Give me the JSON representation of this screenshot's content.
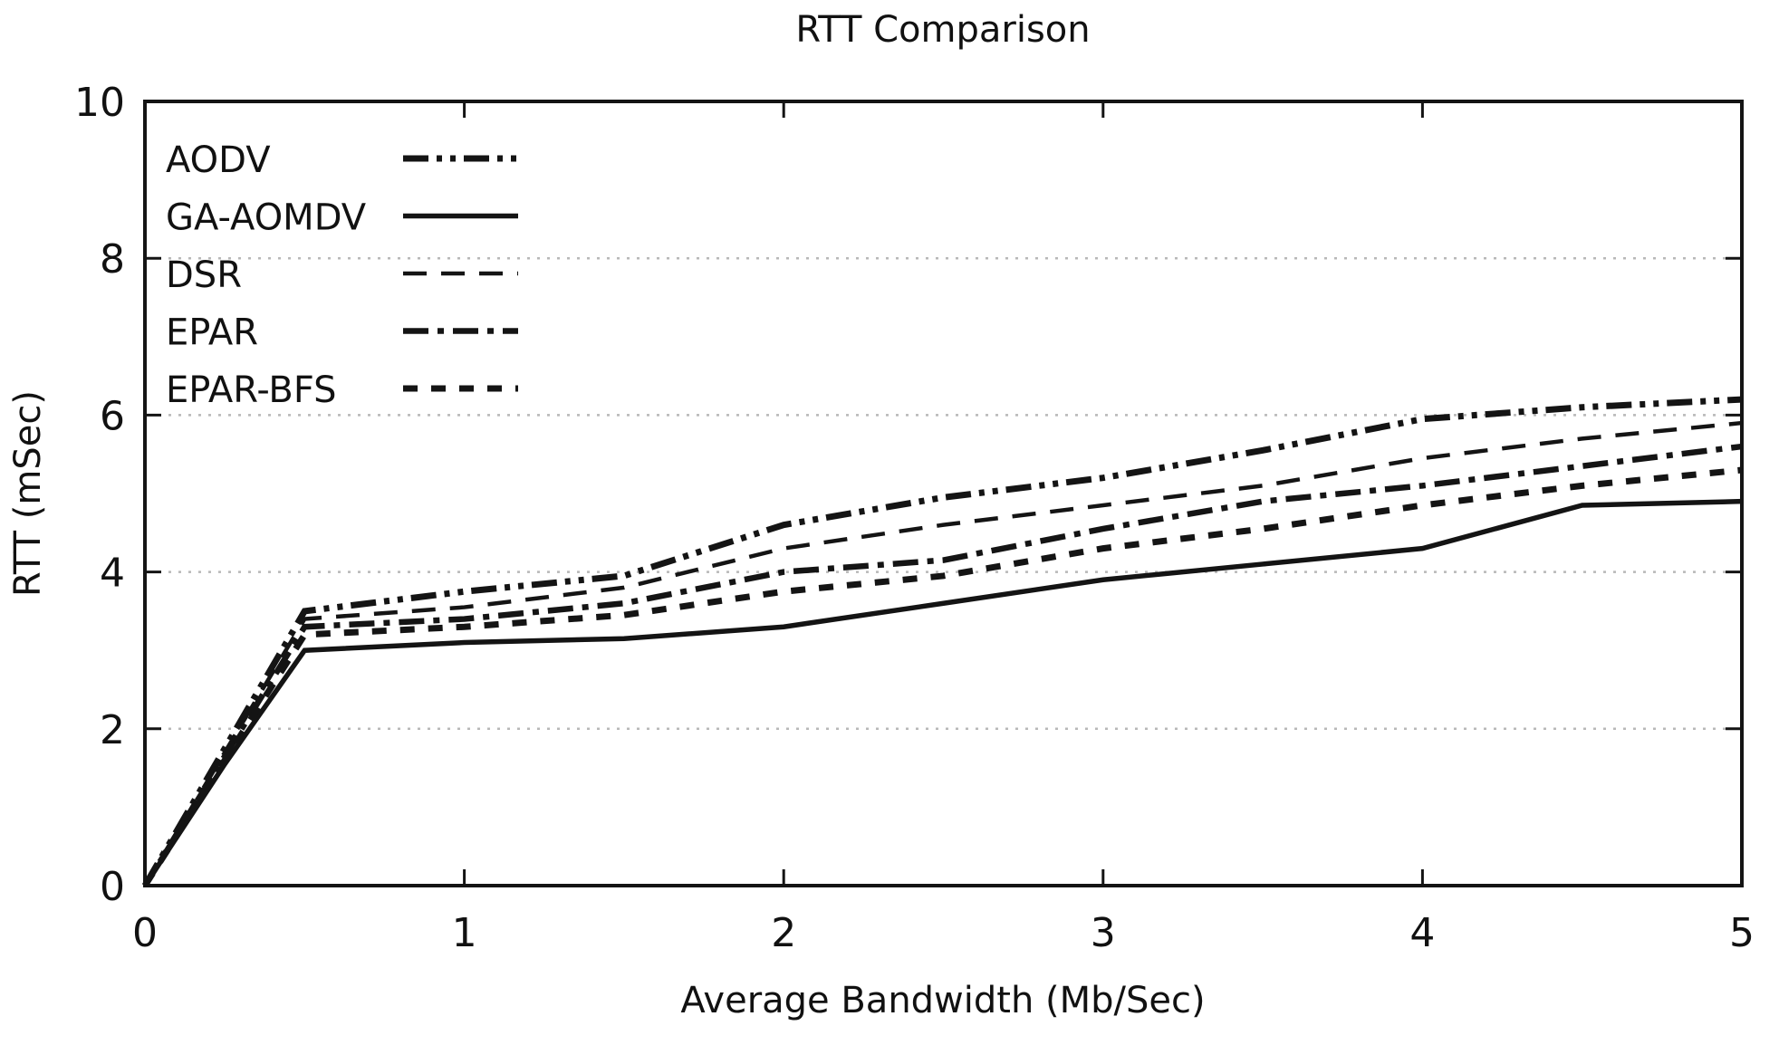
{
  "title": "RTT Comparison",
  "chart_data": {
    "type": "line",
    "title": "RTT Comparison",
    "xlabel": "Average Bandwidth (Mb/Sec)",
    "ylabel": "RTT (mSec)",
    "xlim": [
      0,
      5
    ],
    "ylim": [
      0,
      10
    ],
    "xticks": [
      0,
      1,
      2,
      3,
      4,
      5
    ],
    "yticks": [
      0,
      2,
      4,
      6,
      8,
      10
    ],
    "grid": "horizontal-dotted",
    "gridline_values": [
      2,
      4,
      6,
      8
    ],
    "grid_color": "#b8b8b8",
    "line_color": "#141414",
    "legend_position": "top-left-inside",
    "x": [
      0,
      0.25,
      0.5,
      1,
      1.5,
      2,
      2.5,
      3,
      3.5,
      4,
      4.5,
      5
    ],
    "series": [
      {
        "name": "AODV",
        "style": "dash-dot-dot",
        "linewidth": 7,
        "values": [
          0,
          1.75,
          3.5,
          3.75,
          3.95,
          4.6,
          4.95,
          5.2,
          5.55,
          5.95,
          6.1,
          6.2
        ]
      },
      {
        "name": "GA-AOMDV",
        "style": "solid",
        "linewidth": 5.5,
        "values": [
          0,
          1.55,
          3.0,
          3.1,
          3.15,
          3.3,
          3.6,
          3.9,
          4.1,
          4.3,
          4.85,
          4.9
        ]
      },
      {
        "name": "DSR",
        "style": "long-dash",
        "linewidth": 4.5,
        "values": [
          0,
          1.7,
          3.4,
          3.55,
          3.8,
          4.3,
          4.6,
          4.85,
          5.1,
          5.45,
          5.7,
          5.9
        ]
      },
      {
        "name": "EPAR",
        "style": "dash-dot",
        "linewidth": 6.5,
        "values": [
          0,
          1.65,
          3.3,
          3.4,
          3.6,
          4.0,
          4.15,
          4.55,
          4.9,
          5.1,
          5.35,
          5.6
        ]
      },
      {
        "name": "EPAR-BFS",
        "style": "dash",
        "linewidth": 7,
        "values": [
          0,
          1.6,
          3.2,
          3.3,
          3.45,
          3.75,
          3.95,
          4.3,
          4.55,
          4.85,
          5.1,
          5.3
        ]
      }
    ]
  }
}
